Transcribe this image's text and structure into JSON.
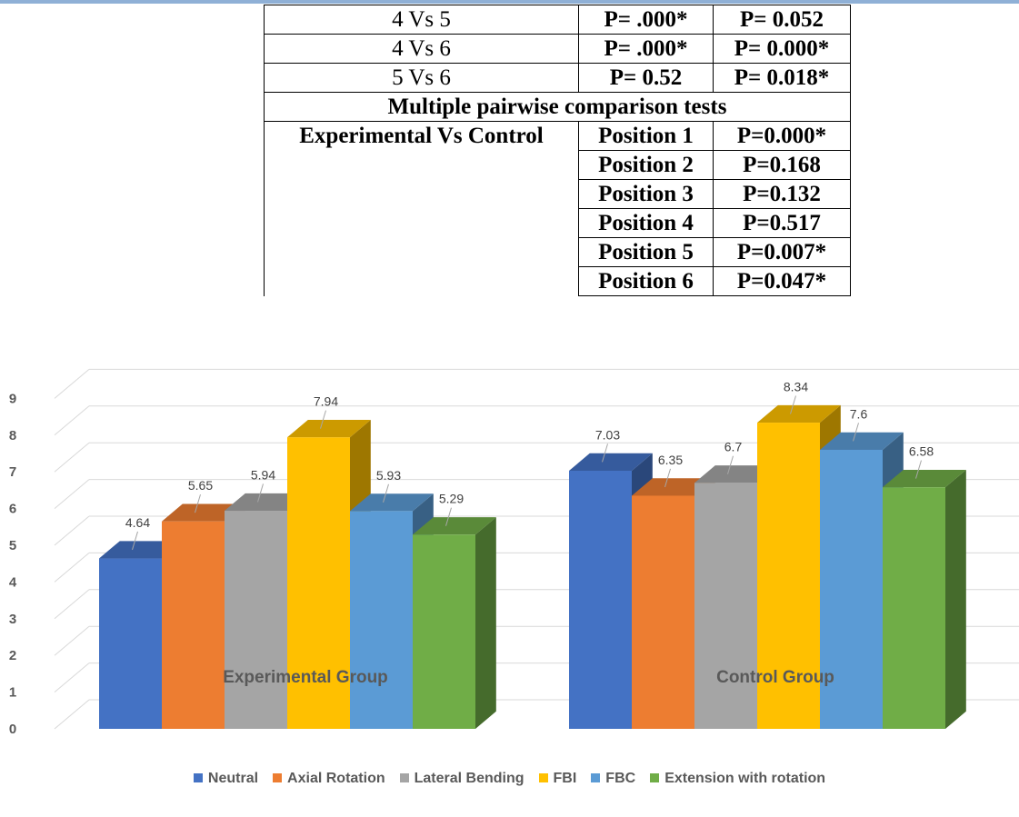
{
  "table": {
    "rows": [
      {
        "label": "4 Vs 5",
        "exp": "P= .000*",
        "ctrl": "P= 0.052"
      },
      {
        "label": "4 Vs 6",
        "exp": "P= .000*",
        "ctrl": "P= 0.000*"
      },
      {
        "label": "5 Vs 6",
        "exp": "P= 0.52",
        "ctrl": "P= 0.018*"
      }
    ],
    "pairwise_title": "Multiple pairwise comparison tests",
    "comparison_label": "Experimental Vs Control",
    "positions": [
      {
        "label": "Position 1",
        "p": "P=0.000*"
      },
      {
        "label": "Position 2",
        "p": "P=0.168"
      },
      {
        "label": "Position 3",
        "p": "P=0.132"
      },
      {
        "label": "Position 4",
        "p": "P=0.517"
      },
      {
        "label": "Position 5",
        "p": "P=0.007*"
      },
      {
        "label": "Position 6",
        "p": "P=0.047*"
      }
    ]
  },
  "chart_data": {
    "type": "bar",
    "categories": [
      "Experimental Group",
      "Control Group"
    ],
    "series": [
      {
        "name": "Neutral",
        "values": [
          4.64,
          7.03
        ],
        "color": "#4472c4"
      },
      {
        "name": "Axial Rotation",
        "values": [
          5.65,
          6.35
        ],
        "color": "#ed7d31"
      },
      {
        "name": "Lateral Bending",
        "values": [
          5.94,
          6.7
        ],
        "color": "#a5a5a5"
      },
      {
        "name": "FBI",
        "values": [
          7.94,
          8.34
        ],
        "color": "#ffc000"
      },
      {
        "name": "FBC",
        "values": [
          5.93,
          7.6
        ],
        "color": "#5b9bd5"
      },
      {
        "name": "Extension with rotation",
        "values": [
          5.29,
          6.58
        ],
        "color": "#70ad47"
      }
    ],
    "value_labels": [
      [
        "4.64",
        "7.03"
      ],
      [
        "5.65",
        "6.35"
      ],
      [
        "5.94",
        "6.7"
      ],
      [
        "7.94",
        "8.34"
      ],
      [
        "5.93",
        "7.6"
      ],
      [
        "5.29",
        "6.58"
      ]
    ],
    "yticks": [
      0,
      1,
      2,
      3,
      4,
      5,
      6,
      7,
      8,
      9
    ],
    "ylim": [
      0,
      9
    ],
    "grid": true,
    "legend_position": "bottom"
  }
}
